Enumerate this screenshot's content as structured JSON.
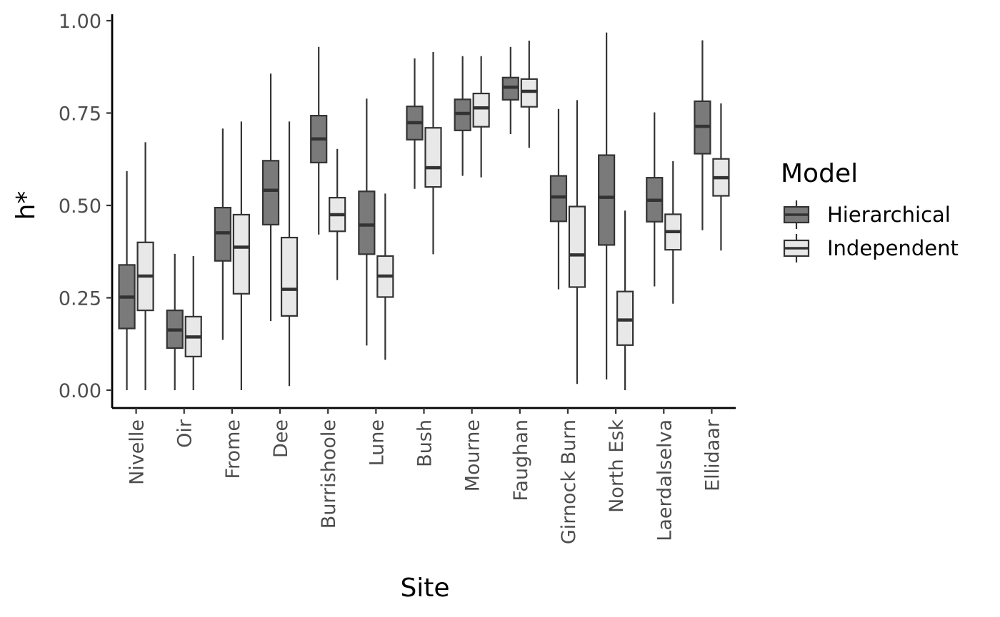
{
  "chart_data": {
    "type": "boxplot",
    "xlabel": "Site",
    "ylabel": "h*",
    "ylim": [
      -0.045,
      1.015
    ],
    "yticks": [
      "0.00",
      "0.25",
      "0.50",
      "0.75",
      "1.00"
    ],
    "ytick_values": [
      0,
      0.25,
      0.5,
      0.75,
      1.0
    ],
    "categories": [
      "Nivelle",
      "Oir",
      "Frome",
      "Dee",
      "Burrishoole",
      "Lune",
      "Bush",
      "Mourne",
      "Faughan",
      "Girnock Burn",
      "North Esk",
      "Laerdalselva",
      "Ellidaar"
    ],
    "legend": {
      "title": "Model",
      "position": "right"
    },
    "grid": false,
    "series": [
      {
        "name": "Hierarchical",
        "color": "#7a7a7a",
        "boxes": [
          {
            "min": 0.0,
            "q1": 0.167,
            "median": 0.252,
            "q3": 0.339,
            "max": 0.593
          },
          {
            "min": 0.0,
            "q1": 0.114,
            "median": 0.163,
            "q3": 0.216,
            "max": 0.369
          },
          {
            "min": 0.136,
            "q1": 0.35,
            "median": 0.426,
            "q3": 0.494,
            "max": 0.708
          },
          {
            "min": 0.187,
            "q1": 0.448,
            "median": 0.541,
            "q3": 0.621,
            "max": 0.857
          },
          {
            "min": 0.421,
            "q1": 0.616,
            "median": 0.68,
            "q3": 0.743,
            "max": 0.929
          },
          {
            "min": 0.121,
            "q1": 0.368,
            "median": 0.447,
            "q3": 0.538,
            "max": 0.789
          },
          {
            "min": 0.545,
            "q1": 0.678,
            "median": 0.724,
            "q3": 0.768,
            "max": 0.898
          },
          {
            "min": 0.58,
            "q1": 0.703,
            "median": 0.749,
            "q3": 0.787,
            "max": 0.904
          },
          {
            "min": 0.693,
            "q1": 0.786,
            "median": 0.82,
            "q3": 0.846,
            "max": 0.929
          },
          {
            "min": 0.273,
            "q1": 0.457,
            "median": 0.523,
            "q3": 0.58,
            "max": 0.761
          },
          {
            "min": 0.029,
            "q1": 0.393,
            "median": 0.522,
            "q3": 0.636,
            "max": 0.968
          },
          {
            "min": 0.281,
            "q1": 0.456,
            "median": 0.514,
            "q3": 0.575,
            "max": 0.752
          },
          {
            "min": 0.433,
            "q1": 0.64,
            "median": 0.714,
            "q3": 0.782,
            "max": 0.947
          }
        ]
      },
      {
        "name": "Independent",
        "color": "#e8e8e8",
        "boxes": [
          {
            "min": 0.0,
            "q1": 0.216,
            "median": 0.309,
            "q3": 0.4,
            "max": 0.671
          },
          {
            "min": 0.0,
            "q1": 0.091,
            "median": 0.144,
            "q3": 0.199,
            "max": 0.363
          },
          {
            "min": 0.0,
            "q1": 0.261,
            "median": 0.387,
            "q3": 0.475,
            "max": 0.727
          },
          {
            "min": 0.011,
            "q1": 0.201,
            "median": 0.273,
            "q3": 0.413,
            "max": 0.727
          },
          {
            "min": 0.298,
            "q1": 0.43,
            "median": 0.475,
            "q3": 0.521,
            "max": 0.653
          },
          {
            "min": 0.082,
            "q1": 0.252,
            "median": 0.309,
            "q3": 0.363,
            "max": 0.532
          },
          {
            "min": 0.368,
            "q1": 0.55,
            "median": 0.602,
            "q3": 0.71,
            "max": 0.915
          },
          {
            "min": 0.576,
            "q1": 0.713,
            "median": 0.764,
            "q3": 0.803,
            "max": 0.904
          },
          {
            "min": 0.656,
            "q1": 0.767,
            "median": 0.809,
            "q3": 0.842,
            "max": 0.946
          },
          {
            "min": 0.017,
            "q1": 0.279,
            "median": 0.366,
            "q3": 0.497,
            "max": 0.785
          },
          {
            "min": 0.0,
            "q1": 0.122,
            "median": 0.19,
            "q3": 0.267,
            "max": 0.486
          },
          {
            "min": 0.234,
            "q1": 0.38,
            "median": 0.429,
            "q3": 0.476,
            "max": 0.62
          },
          {
            "min": 0.378,
            "q1": 0.526,
            "median": 0.575,
            "q3": 0.626,
            "max": 0.776
          }
        ]
      }
    ]
  }
}
